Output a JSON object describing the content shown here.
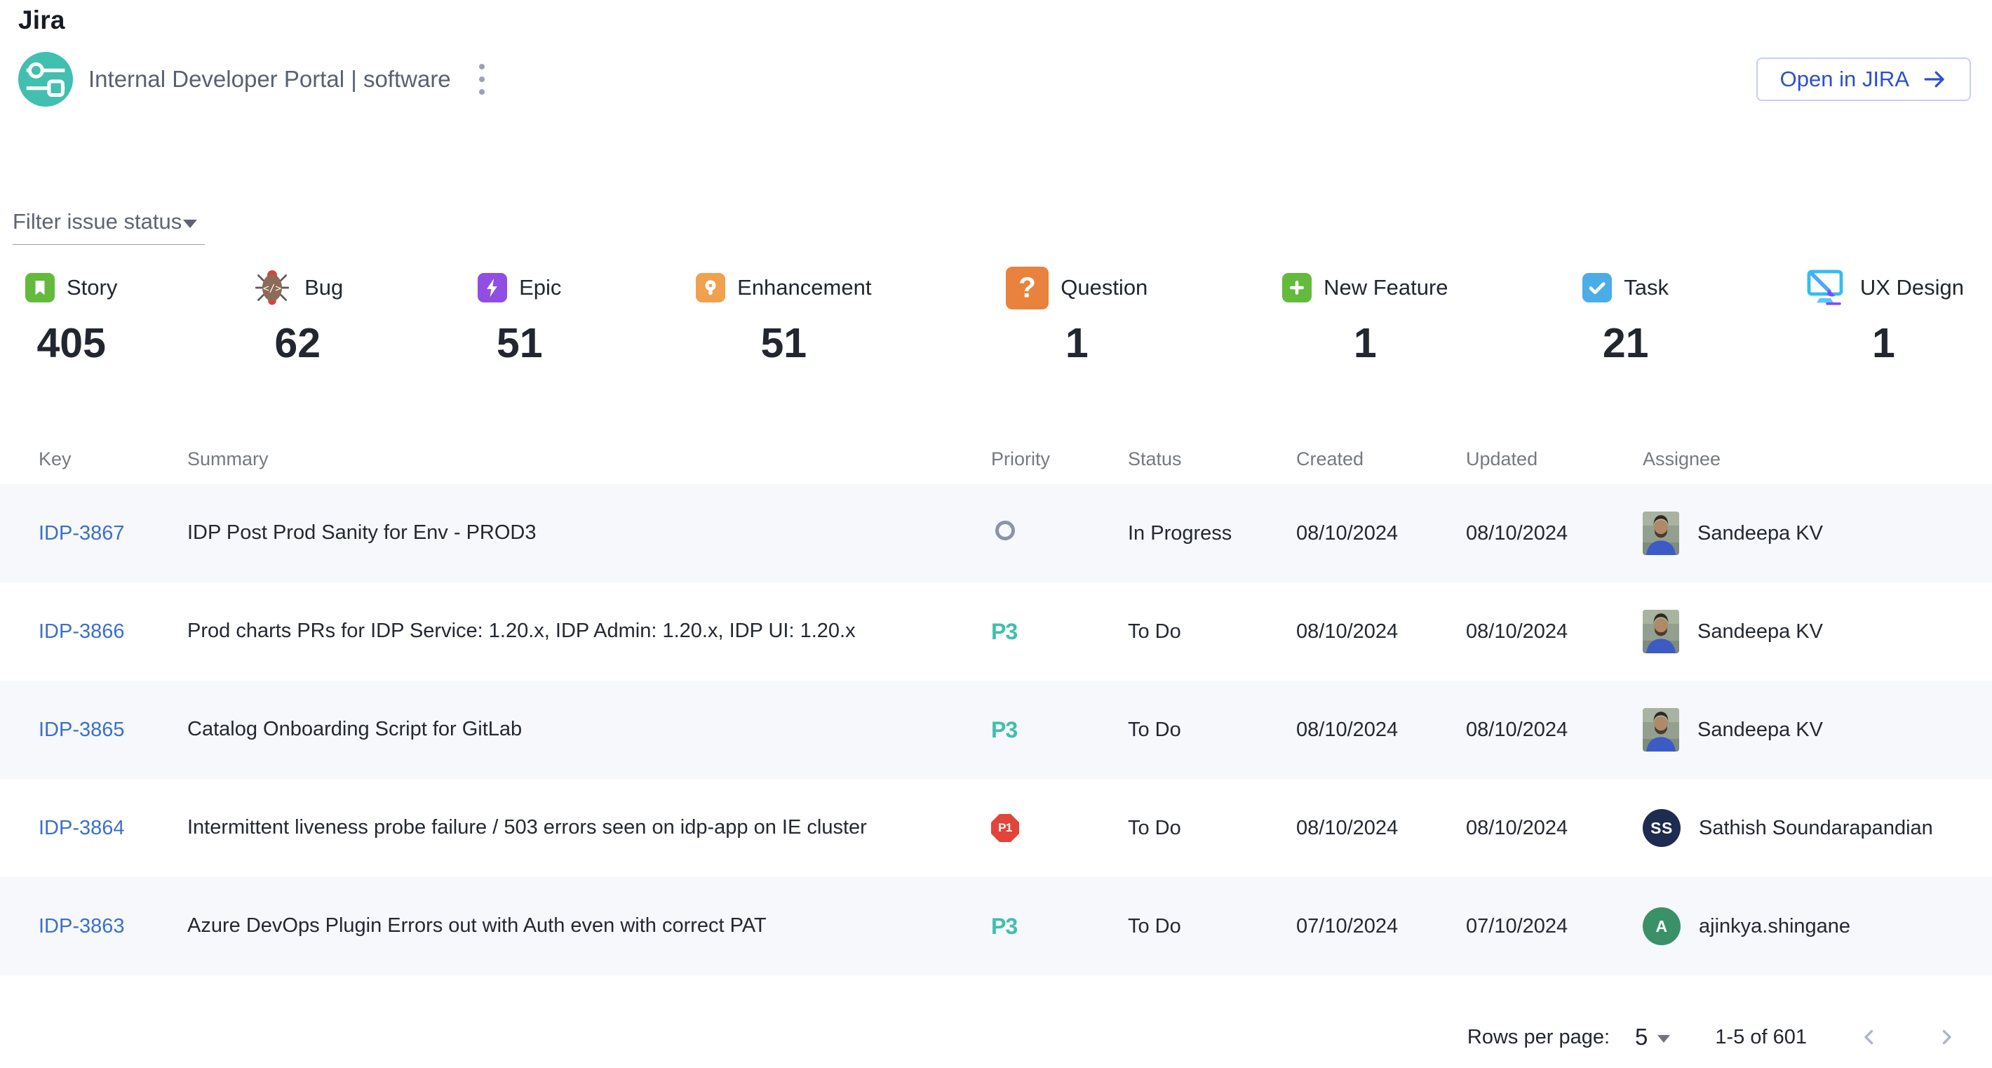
{
  "header": {
    "title": "Jira",
    "project_name": "Internal Developer Portal | software",
    "open_button_label": "Open in JIRA"
  },
  "filter": {
    "label": "Filter issue status"
  },
  "counters": [
    {
      "icon": "story-icon",
      "label": "Story",
      "count": "405"
    },
    {
      "icon": "bug-icon",
      "label": "Bug",
      "count": "62"
    },
    {
      "icon": "epic-icon",
      "label": "Epic",
      "count": "51"
    },
    {
      "icon": "enhancement-icon",
      "label": "Enhancement",
      "count": "51"
    },
    {
      "icon": "question-icon",
      "label": "Question",
      "count": "1"
    },
    {
      "icon": "new-feature-icon",
      "label": "New Feature",
      "count": "1"
    },
    {
      "icon": "task-icon",
      "label": "Task",
      "count": "21"
    },
    {
      "icon": "ux-design-icon",
      "label": "UX Design",
      "count": "1"
    }
  ],
  "table": {
    "columns": [
      "Key",
      "Summary",
      "Priority",
      "Status",
      "Created",
      "Updated",
      "Assignee"
    ],
    "rows": [
      {
        "key": "IDP-3867",
        "summary": "IDP Post Prod Sanity for Env - PROD3",
        "priority": "None",
        "status": "In Progress",
        "created": "08/10/2024",
        "updated": "08/10/2024",
        "assignee": {
          "name": "Sandeepa KV",
          "avatar": "photo"
        }
      },
      {
        "key": "IDP-3866",
        "summary": "Prod charts PRs for IDP Service: 1.20.x, IDP Admin: 1.20.x, IDP UI: 1.20.x",
        "priority": "P3",
        "status": "To Do",
        "created": "08/10/2024",
        "updated": "08/10/2024",
        "assignee": {
          "name": "Sandeepa KV",
          "avatar": "photo"
        }
      },
      {
        "key": "IDP-3865",
        "summary": "Catalog Onboarding Script for GitLab",
        "priority": "P3",
        "status": "To Do",
        "created": "08/10/2024",
        "updated": "08/10/2024",
        "assignee": {
          "name": "Sandeepa KV",
          "avatar": "photo"
        }
      },
      {
        "key": "IDP-3864",
        "summary": "Intermittent liveness probe failure / 503 errors seen on idp-app on IE cluster",
        "priority": "P1",
        "status": "To Do",
        "created": "08/10/2024",
        "updated": "08/10/2024",
        "assignee": {
          "name": "Sathish Soundarapandian",
          "avatar": "initials",
          "initials": "SS",
          "avatar_color": "#1D2C50"
        }
      },
      {
        "key": "IDP-3863",
        "summary": "Azure DevOps Plugin Errors out with Auth even with correct PAT",
        "priority": "P3",
        "status": "To Do",
        "created": "07/10/2024",
        "updated": "07/10/2024",
        "assignee": {
          "name": "ajinkya.shingane",
          "avatar": "initials",
          "initials": "A",
          "avatar_color": "#3A9168"
        }
      }
    ]
  },
  "pagination": {
    "rows_per_page_label": "Rows per page:",
    "rows_per_page_value": "5",
    "range_label": "1-5 of 601"
  },
  "colors": {
    "accent_blue": "#2A4FD0",
    "link_blue": "#3B70C9",
    "p1_red": "#E2443A",
    "p3_teal": "#3FBFAE",
    "priority_none_gray": "#8B93A7",
    "story_green": "#63BA3C",
    "epic_purple": "#904EE2",
    "enhancement_orange": "#F0A150",
    "question_orange": "#E9823D",
    "new_feature_green": "#63BA3C",
    "task_blue": "#4BADE8",
    "ux_design_blue": "#33BDF2",
    "logo_teal": "#41BFAF",
    "zebra_row": "#F6F8FB"
  }
}
